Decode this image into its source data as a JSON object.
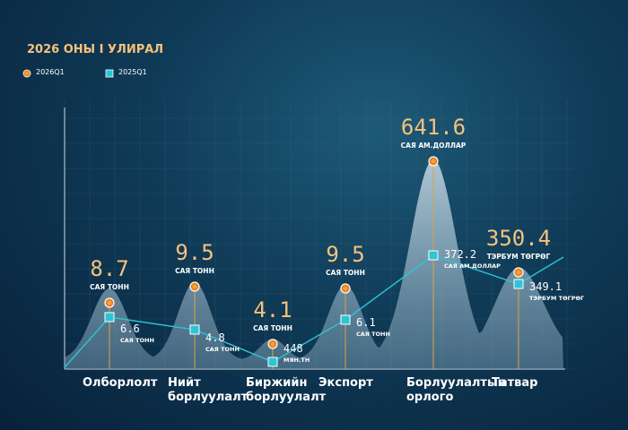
{
  "title": "2026 ОНЫ I УЛИРАЛ",
  "chart_data": {
    "type": "line",
    "categories": [
      "Олборлолт",
      "Нийт борлуулалт",
      "Биржийн борлуулалт",
      "Экспорт",
      "Борлуулалтын орлого",
      "Татвар"
    ],
    "series": [
      {
        "name": "2026Q1",
        "color": "#f39a2b",
        "values": [
          8.7,
          9.5,
          4.1,
          9.5,
          641.6,
          350.4
        ],
        "units": [
          "САЯ ТОНН",
          "САЯ ТОНН",
          "САЯ ТОНН",
          "САЯ ТОНН",
          "САЯ АМ.ДОЛЛАР",
          "ТЭРБУМ ТӨГРӨГ"
        ]
      },
      {
        "name": "2025Q1",
        "color": "#2ec4d6",
        "values": [
          6.6,
          4.8,
          448,
          6.1,
          372.2,
          349.1
        ],
        "units": [
          "САЯ ТОНН",
          "САЯ ТОНН",
          "МЯН.ТН",
          "САЯ ТОНН",
          "САЯ АМ.ДОЛЛАР",
          "ТЭРБУМ ТӨГРӨГ"
        ]
      }
    ]
  }
}
